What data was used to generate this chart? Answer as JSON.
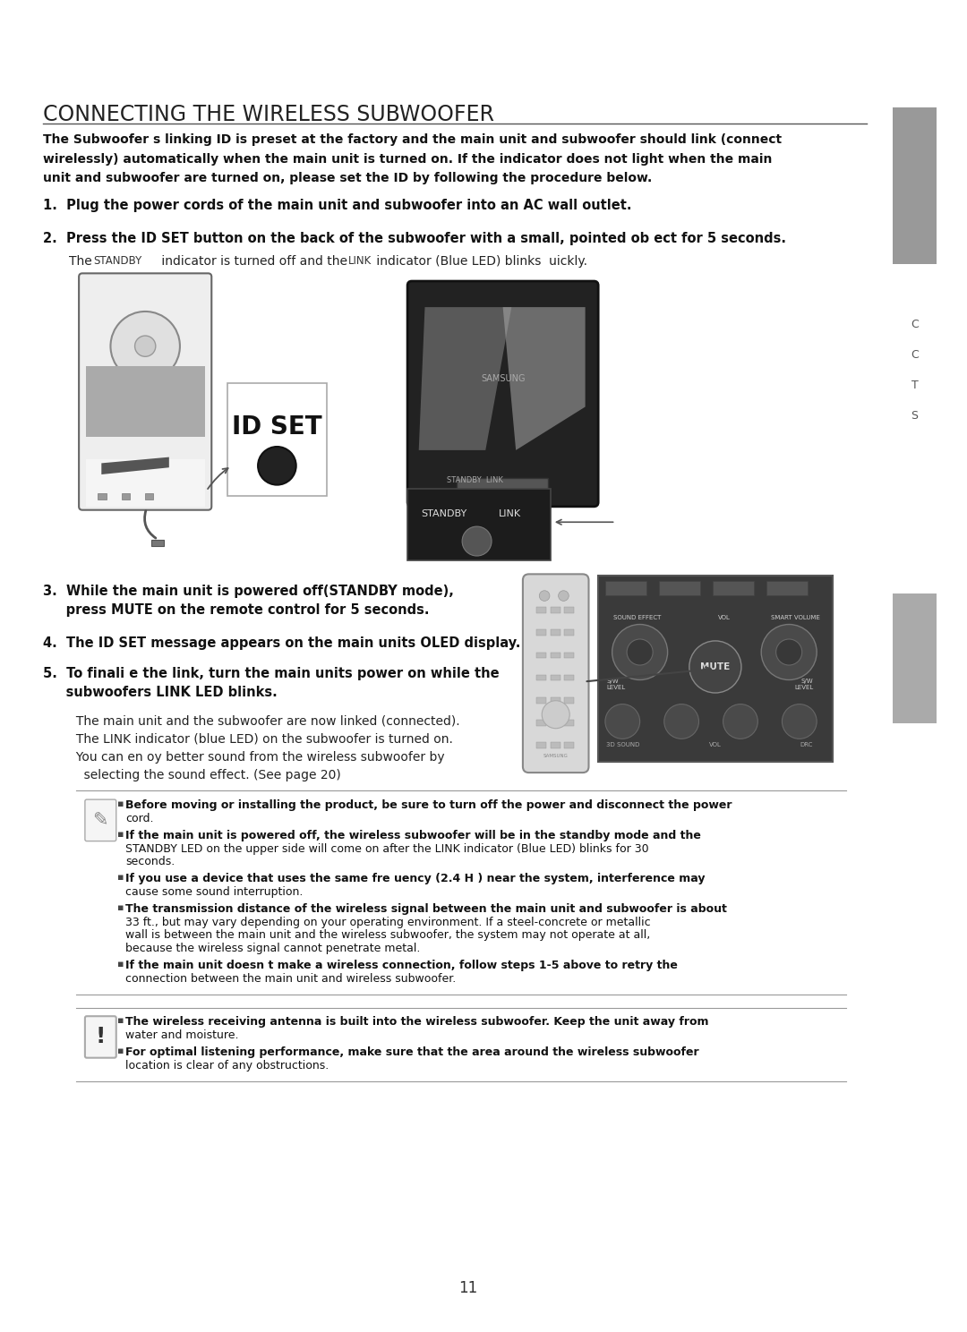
{
  "page_bg": "#ffffff",
  "sidebar_color": "#8a8a8a",
  "title": "CONNECTING THE WIRELESS SUBWOOFER",
  "title_underline": true,
  "intro_text_line1": "The Subwoofer s linking ID is preset at the factory and the main unit and subwoofer should link (connect",
  "intro_text_line2": "wirelessly) automatically when the main unit is turned on. If the indicator does not light when the main",
  "intro_text_line3": "unit and subwoofer are turned on, please set the ID by following the procedure below.",
  "step1": "1.  Plug the power cords of the main unit and subwoofer into an AC wall outlet.",
  "step2": "2.  Press the ID SET button on the back of the subwoofer with a small, pointed ob ect for 5 seconds.",
  "step2_sub": "     The STANDBY indicator is turned off and the LINK indicator (Blue LED) blinks  uickly.",
  "step3_line1": "3.  While the main unit is powered off(STANDBY mode),",
  "step3_line2": "     press MUTE on the remote control for 5 seconds.",
  "step4": "4.  The ID SET message appears on the main units OLED display.",
  "step5_line1": "5.  To finali e the link, turn the main units power on while the",
  "step5_line2": "     subwoofers LINK LED blinks.",
  "step5_sub1": "     The main unit and the subwoofer are now linked (connected).",
  "step5_sub2": "     The LINK indicator (blue LED) on the subwoofer is turned on.",
  "step5_sub3": "     You can en oy better sound from the wireless subwoofer by",
  "step5_sub4": "       selecting the sound effect. (See page 20)",
  "note_bullets": [
    "Before moving or installing the product, be sure to turn off the power and disconnect the power cord.",
    "If the main unit is powered off, the wireless subwoofer will be in the standby mode and the STANDBY LED on the upper side will come on after the LINK indicator (Blue LED) blinks for 30 seconds.",
    "If you use a device that uses the same fre uency (2.4 H ) near the system, interference may cause some sound interruption.",
    "The transmission distance of the wireless signal between the main unit and subwoofer is about 33 ft., but may vary depending on your operating environment. If a steel-concrete or metallic wall is between the main unit and the wireless subwoofer, the system may not operate at all, because the wireless signal cannot penetrate metal.",
    "If the main unit doesn t make a wireless connection, follow steps 1-5 above to retry the connection between the main unit and wireless subwoofer."
  ],
  "note_bullets_wrapped": [
    [
      "Before moving or installing the product, be sure to turn off the power and disconnect the power",
      "cord."
    ],
    [
      "If the main unit is powered off, the wireless subwoofer will be in the standby mode and the",
      "STANDBY LED on the upper side will come on after the LINK indicator (Blue LED) blinks for 30",
      "seconds."
    ],
    [
      "If you use a device that uses the same fre uency (2.4 H ) near the system, interference may",
      "cause some sound interruption."
    ],
    [
      "The transmission distance of the wireless signal between the main unit and subwoofer is about",
      "33 ft., but may vary depending on your operating environment. If a steel-concrete or metallic",
      "wall is between the main unit and the wireless subwoofer, the system may not operate at all,",
      "because the wireless signal cannot penetrate metal."
    ],
    [
      "If the main unit doesn t make a wireless connection, follow steps 1-5 above to retry the",
      "connection between the main unit and wireless subwoofer."
    ]
  ],
  "caution_bullets_wrapped": [
    [
      "The wireless receiving antenna is built into the wireless subwoofer. Keep the unit away from",
      "water and moisture."
    ],
    [
      "For optimal listening performance, make sure that the area around the wireless subwoofer",
      "location is clear of any obstructions."
    ]
  ],
  "page_number": "11",
  "sidebar_letters": [
    "C",
    "C",
    "T",
    "S"
  ]
}
